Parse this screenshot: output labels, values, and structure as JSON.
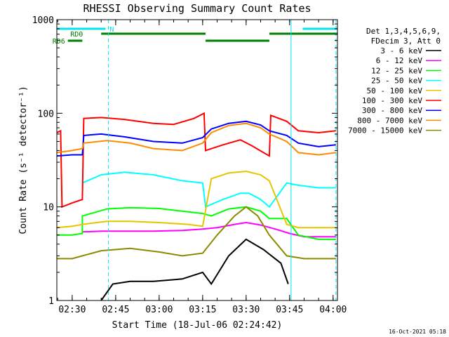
{
  "chart_data": {
    "type": "line",
    "title": "RHESSI Observing Summary Count Rates",
    "xlabel": "Start Time (18-Jul-06 02:24:42)",
    "ylabel": "Count Rate (s⁻¹ detector⁻¹)",
    "yscale": "log",
    "ylim": [
      1,
      1000
    ],
    "xlim": [
      "02:24:42",
      "04:01:30"
    ],
    "x_ticks": [
      "02:30",
      "02:45",
      "03:00",
      "03:15",
      "03:30",
      "03:45",
      "04:00"
    ],
    "y_ticks": [
      "1",
      "10",
      "100",
      "1000"
    ],
    "legend_header": [
      "Det 1,3,4,5,6,9,",
      "FDecim 3, Att 0"
    ],
    "legend_placement": "top-right",
    "flags": {
      "N": {
        "label": "N",
        "color": "#00e5ee",
        "segments": [
          [
            "02:24:42",
            "02:41:30"
          ],
          [
            "03:49:30",
            "04:01:30"
          ]
        ]
      },
      "RD0": {
        "label": "RD0",
        "color": "#008000",
        "segments": [
          [
            "02:40:00",
            "03:16:00"
          ],
          [
            "03:38:00",
            "04:01:30"
          ]
        ]
      },
      "RD6": {
        "label": "RD6",
        "color": "#008000",
        "segments": [
          [
            "02:28:30",
            "02:33:30"
          ],
          [
            "03:16:00",
            "03:38:00"
          ]
        ]
      }
    },
    "vertical_markers": {
      "solid": {
        "color": "#00e5ee",
        "x": [
          "02:24:42",
          "03:45:30"
        ]
      },
      "dashed": {
        "color": "#00e5ee",
        "x": [
          "02:42:30",
          "04:01:00"
        ]
      }
    },
    "series": [
      {
        "name": "3 - 6 keV",
        "color": "#000000",
        "x": [
          "02:40:00",
          "02:44:00",
          "02:50:00",
          "02:58:00",
          "03:08:00",
          "03:15:00",
          "03:18:00",
          "03:24:00",
          "03:30:00",
          "03:36:00",
          "03:42:00",
          "03:44:30"
        ],
        "y": [
          1.0,
          1.5,
          1.6,
          1.6,
          1.7,
          2.0,
          1.5,
          3.0,
          4.5,
          3.5,
          2.5,
          1.5
        ]
      },
      {
        "name": "6 - 12 keV",
        "color": "#ff00ff",
        "x": [
          "02:33:30",
          "02:40:00",
          "02:48:00",
          "02:58:00",
          "03:08:00",
          "03:15:00",
          "03:20:00",
          "03:26:00",
          "03:30:00",
          "03:35:00",
          "03:40:00",
          "03:45:00",
          "03:50:00",
          "03:58:00",
          "04:01:00"
        ],
        "y": [
          5.4,
          5.5,
          5.5,
          5.5,
          5.6,
          5.8,
          6.0,
          6.5,
          6.8,
          6.4,
          5.8,
          5.2,
          4.8,
          4.8,
          4.8
        ]
      },
      {
        "name": "12 - 25 keV",
        "color": "#00ff00",
        "x": [
          "02:24:42",
          "02:30:00",
          "02:33:30",
          "02:33:31",
          "02:42:00",
          "02:50:00",
          "03:00:00",
          "03:08:00",
          "03:15:00",
          "03:18:00",
          "03:24:00",
          "03:30:00",
          "03:35:00",
          "03:38:00",
          "03:44:00",
          "03:48:00",
          "03:55:00",
          "04:01:00"
        ],
        "y": [
          5.0,
          5.0,
          5.2,
          8.0,
          9.5,
          9.8,
          9.6,
          9.0,
          8.5,
          8.0,
          9.5,
          10.0,
          9.0,
          7.5,
          7.5,
          5.0,
          4.5,
          4.5
        ]
      },
      {
        "name": "25 - 50 keV",
        "color": "#00ffff",
        "x": [
          "02:33:30",
          "02:40:00",
          "02:48:00",
          "02:58:00",
          "03:08:00",
          "03:15:00",
          "03:16:00",
          "03:22:00",
          "03:28:00",
          "03:31:00",
          "03:35:00",
          "03:38:00",
          "03:44:00",
          "03:48:00",
          "03:55:00",
          "04:01:00"
        ],
        "y": [
          18,
          22,
          23.5,
          22,
          19,
          18,
          10,
          12,
          14,
          14,
          12,
          10,
          18,
          17,
          16,
          16
        ]
      },
      {
        "name": "50 - 100 keV",
        "color": "#e5c500",
        "x": [
          "02:24:42",
          "02:30:00",
          "02:33:30",
          "02:42:00",
          "02:50:00",
          "03:00:00",
          "03:10:00",
          "03:15:00",
          "03:18:00",
          "03:24:00",
          "03:30:00",
          "03:35:00",
          "03:38:00",
          "03:44:00",
          "03:48:00",
          "03:55:00",
          "04:01:00"
        ],
        "y": [
          6.0,
          6.2,
          6.5,
          7.0,
          7.0,
          6.8,
          6.5,
          6.2,
          20,
          23,
          24,
          22,
          19,
          6.5,
          6.0,
          6.0,
          6.0
        ]
      },
      {
        "name": "100 - 300 keV",
        "color": "#ff0000",
        "x": [
          "02:24:42",
          "02:26:00",
          "02:26:30",
          "02:30:00",
          "02:33:30",
          "02:34:00",
          "02:40:00",
          "02:48:00",
          "02:58:00",
          "03:05:00",
          "03:12:00",
          "03:15:30",
          "03:16:00",
          "03:22:00",
          "03:28:00",
          "03:32:00",
          "03:36:00",
          "03:38:00",
          "03:38:30",
          "03:44:00",
          "03:48:00",
          "03:55:00",
          "04:01:00"
        ],
        "y": [
          62,
          65,
          10,
          11,
          12,
          88,
          90,
          86,
          78,
          76,
          88,
          100,
          40,
          46,
          52,
          45,
          38,
          35,
          95,
          82,
          65,
          62,
          65
        ]
      },
      {
        "name": "300 - 800 keV",
        "color": "#0000ff",
        "x": [
          "02:24:42",
          "02:30:00",
          "02:33:30",
          "02:34:00",
          "02:40:00",
          "02:48:00",
          "02:58:00",
          "03:08:00",
          "03:15:00",
          "03:18:00",
          "03:24:00",
          "03:30:00",
          "03:35:00",
          "03:38:00",
          "03:44:00",
          "03:48:00",
          "03:55:00",
          "04:01:00"
        ],
        "y": [
          35,
          36,
          36,
          58,
          60,
          56,
          50,
          48,
          55,
          68,
          78,
          82,
          75,
          65,
          58,
          48,
          44,
          46
        ]
      },
      {
        "name": "800 - 7000 keV",
        "color": "#ff8c00",
        "x": [
          "02:24:42",
          "02:30:00",
          "02:33:30",
          "02:34:00",
          "02:42:00",
          "02:50:00",
          "02:58:00",
          "03:08:00",
          "03:15:00",
          "03:18:00",
          "03:24:00",
          "03:30:00",
          "03:35:00",
          "03:38:00",
          "03:44:00",
          "03:48:00",
          "03:55:00",
          "04:01:00"
        ],
        "y": [
          38,
          40,
          42,
          48,
          51,
          48,
          42,
          40,
          48,
          62,
          74,
          78,
          70,
          60,
          50,
          38,
          36,
          38
        ]
      },
      {
        "name": "7000 - 15000 keV",
        "color": "#8b8b00",
        "x": [
          "02:24:42",
          "02:30:00",
          "02:33:30",
          "02:40:00",
          "02:50:00",
          "03:00:00",
          "03:08:00",
          "03:15:00",
          "03:20:00",
          "03:26:00",
          "03:30:00",
          "03:34:00",
          "03:38:00",
          "03:44:00",
          "03:50:00",
          "04:01:00"
        ],
        "y": [
          2.8,
          2.8,
          3.0,
          3.4,
          3.6,
          3.3,
          3.0,
          3.2,
          5.0,
          8.0,
          10.0,
          8.0,
          5.0,
          3.0,
          2.8,
          2.8
        ]
      }
    ]
  },
  "timestamp": "16-Oct-2021 05:18"
}
